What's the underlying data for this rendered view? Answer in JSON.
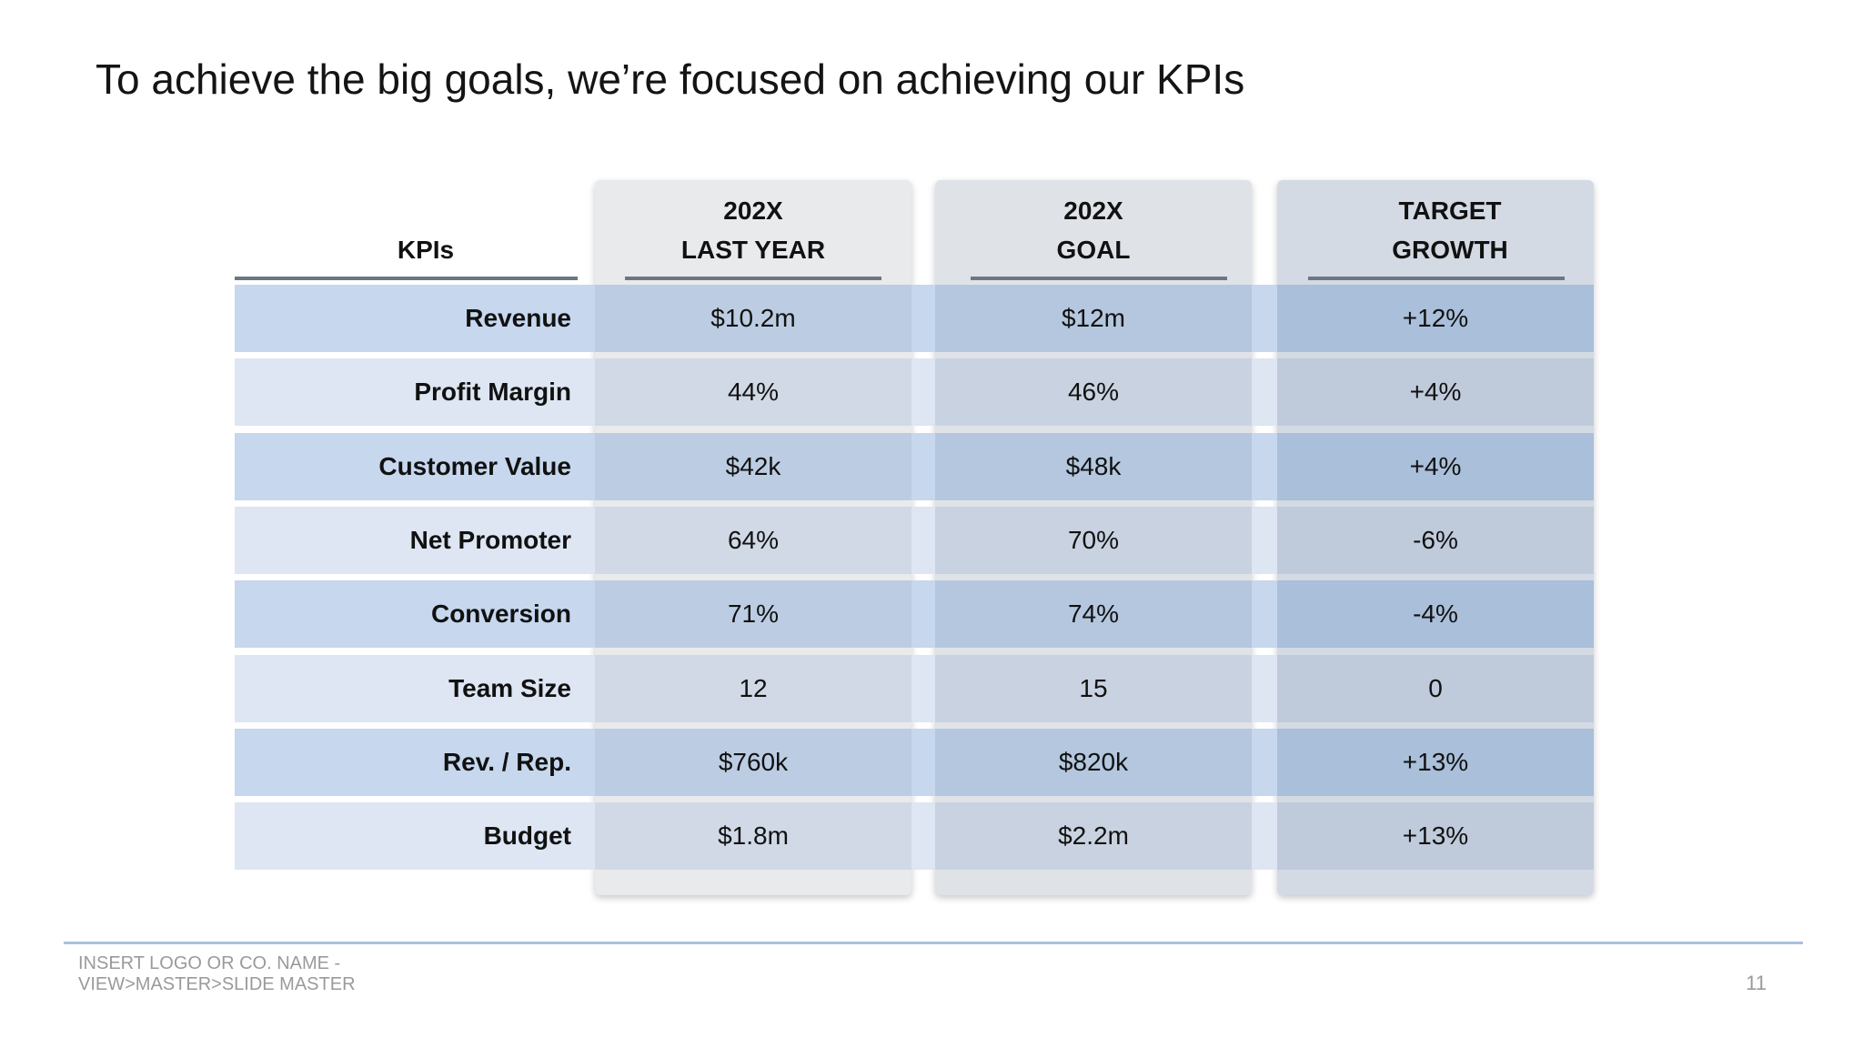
{
  "title": "To achieve the big goals, we’re focused on achieving our KPIs",
  "table": {
    "kpi_header": "KPIs",
    "columns": [
      {
        "line1": "202X",
        "line2": "LAST YEAR"
      },
      {
        "line1": "202X",
        "line2": "GOAL"
      },
      {
        "line1": "TARGET",
        "line2": "GROWTH"
      }
    ],
    "rows": [
      {
        "label": "Revenue",
        "last_year": "$10.2m",
        "goal": "$12m",
        "growth": "+12%"
      },
      {
        "label": "Profit Margin",
        "last_year": "44%",
        "goal": "46%",
        "growth": "+4%"
      },
      {
        "label": "Customer Value",
        "last_year": "$42k",
        "goal": "$48k",
        "growth": "+4%"
      },
      {
        "label": "Net Promoter",
        "last_year": "64%",
        "goal": "70%",
        "growth": "-6%"
      },
      {
        "label": "Conversion",
        "last_year": "71%",
        "goal": "74%",
        "growth": "-4%"
      },
      {
        "label": "Team Size",
        "last_year": "12",
        "goal": "15",
        "growth": "0"
      },
      {
        "label": "Rev. / Rep.",
        "last_year": "$760k",
        "goal": "$820k",
        "growth": "+13%"
      },
      {
        "label": "Budget",
        "last_year": "$1.8m",
        "goal": "$2.2m",
        "growth": "+13%"
      }
    ]
  },
  "footer": {
    "line1": "INSERT LOGO OR CO. NAME -",
    "line2": "VIEW>MASTER>SLIDE MASTER",
    "page_number": "11"
  },
  "colors": {
    "row_band_odd": "#c6d7ee",
    "row_band_even": "#dde6f2",
    "footer_rule": "#a9c0dd"
  }
}
